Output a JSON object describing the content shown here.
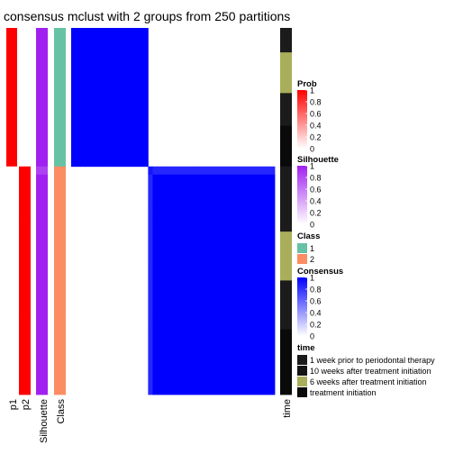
{
  "chart_data": {
    "type": "heatmap",
    "title": "consensus mclust with 2 groups from 250 partitions",
    "annotation_labels": [
      "p1",
      "p2",
      "Silhouette",
      "Class"
    ],
    "time_label": "time",
    "samples": {
      "group_sizes": [
        17,
        28
      ],
      "p1": [
        1,
        1,
        1,
        1,
        1,
        1,
        1,
        1,
        1,
        1,
        1,
        1,
        1,
        1,
        1,
        1,
        1,
        0,
        0,
        0,
        0,
        0,
        0,
        0,
        0,
        0,
        0,
        0,
        0,
        0,
        0,
        0,
        0,
        0,
        0,
        0,
        0,
        0,
        0,
        0,
        0,
        0,
        0,
        0,
        0
      ],
      "p2": [
        0,
        0,
        0,
        0,
        0,
        0,
        0,
        0,
        0,
        0,
        0,
        0,
        0,
        0,
        0,
        0,
        0,
        1,
        1,
        1,
        1,
        1,
        1,
        1,
        1,
        1,
        1,
        1,
        1,
        1,
        1,
        1,
        1,
        1,
        1,
        1,
        1,
        1,
        1,
        1,
        1,
        1,
        1,
        1,
        1
      ],
      "silhouette": [
        1,
        1,
        1,
        1,
        1,
        1,
        1,
        1,
        1,
        1,
        1,
        1,
        1,
        1,
        1,
        1,
        1,
        0.85,
        1,
        1,
        1,
        1,
        1,
        1,
        1,
        1,
        1,
        1,
        1,
        1,
        1,
        1,
        1,
        1,
        1,
        1,
        1,
        1,
        1,
        1,
        1,
        1,
        1,
        1,
        1
      ],
      "class": [
        1,
        1,
        1,
        1,
        1,
        1,
        1,
        1,
        1,
        1,
        1,
        1,
        1,
        1,
        1,
        1,
        1,
        2,
        2,
        2,
        2,
        2,
        2,
        2,
        2,
        2,
        2,
        2,
        2,
        2,
        2,
        2,
        2,
        2,
        2,
        2,
        2,
        2,
        2,
        2,
        2,
        2,
        2,
        2,
        2
      ],
      "time": [
        1,
        1,
        1,
        2,
        2,
        2,
        2,
        2,
        1,
        1,
        1,
        1,
        3,
        3,
        3,
        3,
        3,
        1,
        1,
        1,
        1,
        1,
        1,
        1,
        1,
        2,
        2,
        2,
        2,
        2,
        2,
        1,
        1,
        1,
        1,
        1,
        1,
        3,
        3,
        3,
        3,
        3,
        3,
        3,
        3
      ],
      "outlier_row": 17,
      "outlier_offdiag": 0.85,
      "outlier_diag": 0.92
    },
    "legends": [
      {
        "title": "Prob",
        "ticks": [
          "1",
          "0.8",
          "0.6",
          "0.4",
          "0.2",
          "0"
        ],
        "colors": [
          "#ff0000",
          "#ffffff"
        ]
      },
      {
        "title": "Silhouette",
        "ticks": [
          "1",
          "0.8",
          "0.6",
          "0.4",
          "0.2",
          "0"
        ],
        "colors": [
          "#a020f0",
          "#ffffff"
        ]
      },
      {
        "title": "Class",
        "items": [
          {
            "label": "1",
            "color": "#66c2a5"
          },
          {
            "label": "2",
            "color": "#fc8d62"
          }
        ]
      },
      {
        "title": "Consensus",
        "ticks": [
          "1",
          "0.8",
          "0.6",
          "0.4",
          "0.2",
          "0"
        ],
        "colors": [
          "#0000ff",
          "#ffffff"
        ]
      },
      {
        "title": "time",
        "items": [
          {
            "label": "1 week prior to periodontal therapy",
            "color": "#1b1b1b"
          },
          {
            "label": "10 weeks after treatment initiation",
            "color": "#141414"
          },
          {
            "label": "6 weeks after treatment initiation",
            "color": "#a8ae5a"
          },
          {
            "label": "treatment initiation",
            "color": "#0a0a0a"
          }
        ]
      }
    ],
    "colors": {
      "prob_high": "#ff0000",
      "silhouette_high": "#a020f0",
      "class_1": "#66c2a5",
      "class_2": "#fc8d62",
      "consensus_high": "#0000ff",
      "time_dark": "#1b1b1b",
      "time_olive": "#a8ae5a",
      "time_black": "#0a0a0a"
    }
  }
}
